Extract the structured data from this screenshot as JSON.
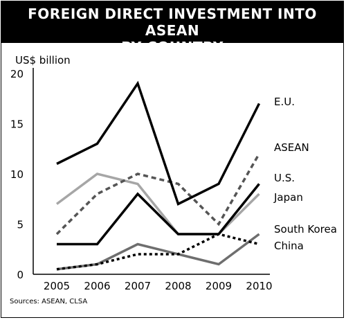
{
  "title_lines": [
    "FOREIGN DIRECT INVESTMENT INTO ASEAN",
    "BY COUNTRY"
  ],
  "source": "Sources: ASEAN, CLSA",
  "chart_data": {
    "type": "line",
    "title": "FOREIGN DIRECT INVESTMENT INTO ASEAN BY COUNTRY",
    "ylabel": "US$ billion",
    "xlabel": "",
    "x": [
      "2005",
      "2006",
      "2007",
      "2008",
      "2009",
      "2010"
    ],
    "yticks": [
      0,
      5,
      10,
      15,
      20
    ],
    "ylim": [
      0,
      20
    ],
    "grid": false,
    "legend": "inline labels at line ends (right)",
    "series": [
      {
        "name": "E.U.",
        "values": [
          11,
          13,
          19,
          7,
          9,
          17
        ],
        "color": "#000000",
        "dash": "solid"
      },
      {
        "name": "ASEAN",
        "values": [
          4,
          8,
          10,
          9,
          5,
          12
        ],
        "color": "#555555",
        "dash": "dashed"
      },
      {
        "name": "U.S.",
        "values": [
          3,
          3,
          8,
          4,
          4,
          9
        ],
        "color": "#000000",
        "dash": "solid"
      },
      {
        "name": "Japan",
        "values": [
          7,
          10,
          9,
          4,
          4,
          8
        ],
        "color": "#a6a6a6",
        "dash": "solid"
      },
      {
        "name": "South Korea",
        "values": [
          0.5,
          1,
          3,
          2,
          1,
          4
        ],
        "color": "#6e6e6e",
        "dash": "solid"
      },
      {
        "name": "China",
        "values": [
          0.5,
          1,
          2,
          2,
          4,
          3
        ],
        "color": "#000000",
        "dash": "dotted"
      }
    ]
  }
}
